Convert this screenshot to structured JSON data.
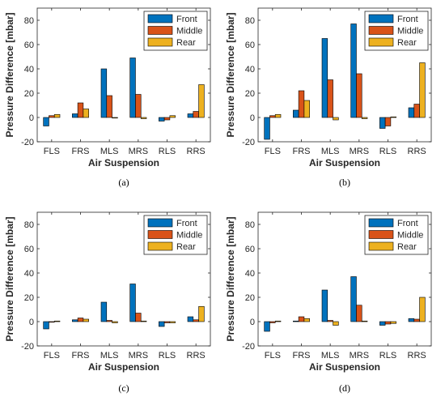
{
  "figure": {
    "series_colors": {
      "Front": "#0072BD",
      "Middle": "#D95319",
      "Rear": "#EDB120"
    }
  },
  "chart_data": [
    {
      "type": "bar",
      "caption": "(a)",
      "categories": [
        "FLS",
        "FRS",
        "MLS",
        "MRS",
        "RLS",
        "RRS"
      ],
      "series": [
        {
          "name": "Front",
          "values": [
            -7,
            3,
            40,
            49,
            -3,
            3
          ]
        },
        {
          "name": "Middle",
          "values": [
            1.5,
            12,
            18,
            19,
            -2,
            5
          ]
        },
        {
          "name": "Rear",
          "values": [
            2.5,
            7,
            0,
            -1,
            1.5,
            27
          ]
        }
      ],
      "xlabel": "Air Suspension",
      "ylabel": "Pressure Difference [mbar]",
      "ylim": [
        -20,
        90
      ],
      "yticks": [
        -20,
        0,
        20,
        40,
        60,
        80
      ],
      "legend": "top-right",
      "grid": false
    },
    {
      "type": "bar",
      "caption": "(b)",
      "categories": [
        "FLS",
        "FRS",
        "MLS",
        "MRS",
        "RLS",
        "RRS"
      ],
      "series": [
        {
          "name": "Front",
          "values": [
            -18,
            6,
            65,
            77,
            -9,
            8
          ]
        },
        {
          "name": "Middle",
          "values": [
            1.5,
            22,
            31,
            36,
            -7,
            11
          ]
        },
        {
          "name": "Rear",
          "values": [
            2.5,
            14,
            -2,
            -1,
            0.5,
            45
          ]
        }
      ],
      "xlabel": "Air Suspension",
      "ylabel": "Pressure Difference [mbar]",
      "ylim": [
        -20,
        90
      ],
      "yticks": [
        -20,
        0,
        20,
        40,
        60,
        80
      ],
      "legend": "top-right",
      "grid": false
    },
    {
      "type": "bar",
      "caption": "(c)",
      "categories": [
        "FLS",
        "FRS",
        "MLS",
        "MRS",
        "RLS",
        "RRS"
      ],
      "series": [
        {
          "name": "Front",
          "values": [
            -6,
            1.5,
            16,
            31,
            -4,
            4
          ]
        },
        {
          "name": "Middle",
          "values": [
            -0.5,
            3,
            1,
            7,
            -1,
            1.5
          ]
        },
        {
          "name": "Rear",
          "values": [
            0.5,
            2,
            -1,
            0.5,
            -1,
            12.5
          ]
        }
      ],
      "xlabel": "Air Suspension",
      "ylabel": "Pressure Difference [mbar]",
      "ylim": [
        -20,
        90
      ],
      "yticks": [
        -20,
        0,
        20,
        40,
        60,
        80
      ],
      "legend": "top-right",
      "grid": false
    },
    {
      "type": "bar",
      "caption": "(d)",
      "categories": [
        "FLS",
        "FRS",
        "MLS",
        "MRS",
        "RLS",
        "RRS"
      ],
      "series": [
        {
          "name": "Front",
          "values": [
            -8,
            0.5,
            26,
            37,
            -3,
            2.5
          ]
        },
        {
          "name": "Middle",
          "values": [
            -1,
            4,
            1,
            13.5,
            -2,
            2
          ]
        },
        {
          "name": "Rear",
          "values": [
            0.5,
            2.5,
            -3,
            0.5,
            -1.5,
            20
          ]
        }
      ],
      "xlabel": "Air Suspension",
      "ylabel": "Pressure Difference [mbar]",
      "ylim": [
        -20,
        90
      ],
      "yticks": [
        -20,
        0,
        20,
        40,
        60,
        80
      ],
      "legend": "top-right",
      "grid": false
    }
  ]
}
